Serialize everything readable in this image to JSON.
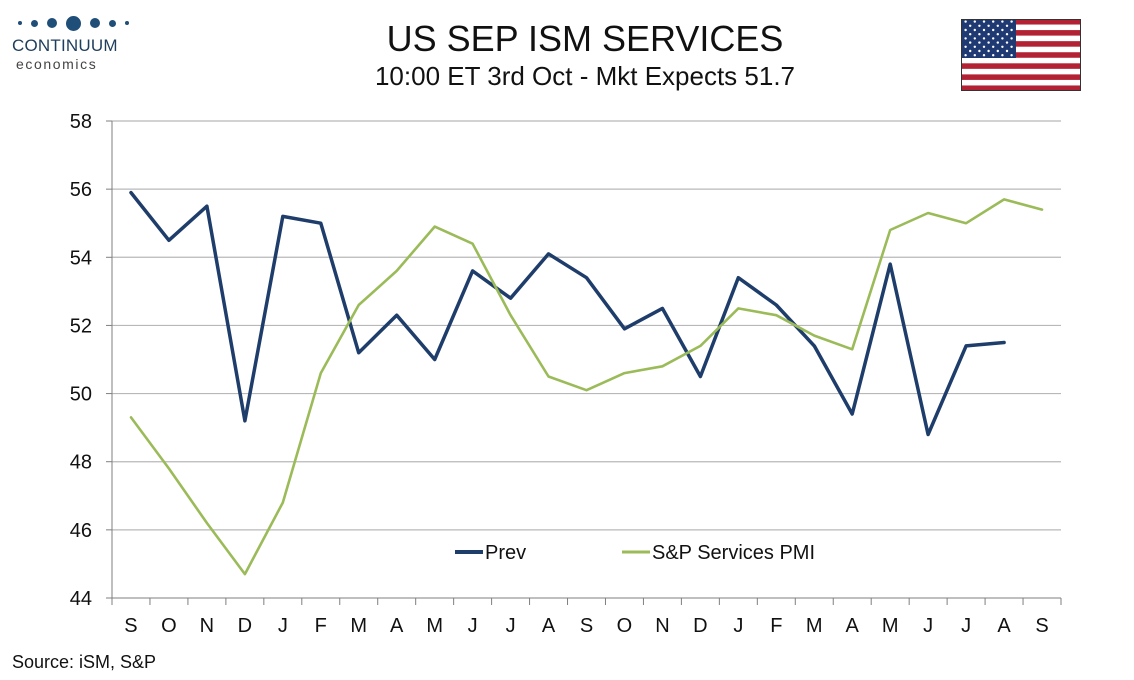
{
  "header": {
    "title": "US SEP ISM SERVICES",
    "subtitle": "10:00 ET 3rd Oct - Mkt Expects 51.7"
  },
  "logo": {
    "name": "CONTINUUM",
    "tagline": "economics"
  },
  "flag_icon": "us-flag-icon",
  "colors": {
    "prev": "#1f3d6b",
    "pmi": "#9bbb59",
    "grid": "#b8b8b8",
    "axis": "#7f7f7f"
  },
  "source": "Source: iSM, S&P",
  "chart_data": {
    "type": "line",
    "title": "US SEP ISM SERVICES",
    "categories": [
      "S",
      "O",
      "N",
      "D",
      "J",
      "F",
      "M",
      "A",
      "M",
      "J",
      "J",
      "A",
      "S",
      "O",
      "N",
      "D",
      "J",
      "F",
      "M",
      "A",
      "M",
      "J",
      "J",
      "A",
      "S"
    ],
    "ylim": [
      44,
      58
    ],
    "yticks": [
      44,
      46,
      48,
      50,
      52,
      54,
      56,
      58
    ],
    "grid": true,
    "legend_position": "bottom-center",
    "series": [
      {
        "name": "Prev",
        "color": "#1f3d6b",
        "values": [
          55.9,
          54.5,
          55.5,
          49.2,
          55.2,
          55.0,
          51.2,
          52.3,
          51.0,
          53.6,
          52.8,
          54.1,
          53.4,
          51.9,
          52.5,
          50.5,
          53.4,
          52.6,
          51.4,
          49.4,
          53.8,
          48.8,
          51.4,
          51.5,
          null
        ]
      },
      {
        "name": "S&P Services PMI",
        "color": "#9bbb59",
        "values": [
          49.3,
          47.8,
          46.2,
          44.7,
          46.8,
          50.6,
          52.6,
          53.6,
          54.9,
          54.4,
          52.3,
          50.5,
          50.1,
          50.6,
          50.8,
          51.4,
          52.5,
          52.3,
          51.7,
          51.3,
          54.8,
          55.3,
          55.0,
          55.7,
          55.4
        ]
      }
    ]
  }
}
